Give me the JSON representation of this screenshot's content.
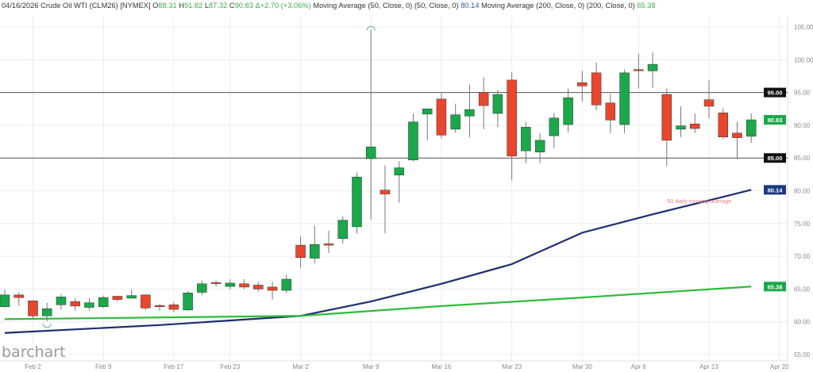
{
  "header": {
    "date": "04/16/2026",
    "symbol": "Crude Oil WTI (CLM26) [NYMEX]",
    "open_label": "O",
    "open": "88.31",
    "high_label": "H",
    "high": "91.82",
    "low_label": "L",
    "low": "87.32",
    "close_label": "C",
    "close": "90.83",
    "change": "Δ+2.70 (+3.06%)",
    "ma50_label": "Moving Average (50, Close, 0)  (50, Close, 0)",
    "ma50_value": "80.14",
    "ma200_label": "Moving Average (200, Close, 0)  (200, Close, 0)",
    "ma200_value": "65.38"
  },
  "logo": "barchart",
  "colors": {
    "up": "#1aa84a",
    "down": "#e8472e",
    "ma50": "#1c2e6e",
    "ma200": "#2dbb3a",
    "badge_black": "#111111",
    "badge_green": "#1aa84a",
    "badge_navy": "#1c3a80",
    "annotation": "#e8838a"
  },
  "chart_data": {
    "type": "candlestick",
    "y_axis": {
      "min": 55,
      "max": 105,
      "ticks": [
        "55.00",
        "60.00",
        "65.00",
        "70.00",
        "75.00",
        "80.00",
        "85.00",
        "90.00",
        "95.00",
        "100.00",
        "105.00"
      ],
      "side": "right"
    },
    "x_ticks": [
      {
        "label": "Feb 2",
        "date": "Feb 2"
      },
      {
        "label": "Feb 9",
        "date": "Feb 9"
      },
      {
        "label": "Feb 17",
        "date": "Feb 17"
      },
      {
        "label": "Feb 23",
        "date": "Feb 23"
      },
      {
        "label": "Mar 2",
        "date": "Mar 2"
      },
      {
        "label": "Mar 9",
        "date": "Mar 9"
      },
      {
        "label": "Mar 16",
        "date": "Mar 16"
      },
      {
        "label": "Mar 23",
        "date": "Mar 23"
      },
      {
        "label": "Mar 30",
        "date": "Mar 30"
      },
      {
        "label": "Apr 6",
        "date": "Apr 6"
      },
      {
        "label": "Apr 13",
        "date": "Apr 13"
      },
      {
        "label": "Apr 20",
        "date": "Apr 20"
      }
    ],
    "grid": true,
    "candles": [
      {
        "d": "Jan 29",
        "o": 62.3,
        "h": 64.9,
        "l": 62.1,
        "c": 64.1
      },
      {
        "d": "Jan 30",
        "o": 64.1,
        "h": 64.5,
        "l": 62.5,
        "c": 63.7
      },
      {
        "d": "Feb 2",
        "o": 63.2,
        "h": 63.3,
        "l": 60.5,
        "c": 60.9
      },
      {
        "d": "Feb 3",
        "o": 60.9,
        "h": 62.9,
        "l": 60.1,
        "c": 62.0
      },
      {
        "d": "Feb 4",
        "o": 62.6,
        "h": 64.2,
        "l": 61.9,
        "c": 63.8
      },
      {
        "d": "Feb 5",
        "o": 63.1,
        "h": 63.6,
        "l": 61.7,
        "c": 62.4
      },
      {
        "d": "Feb 6",
        "o": 62.2,
        "h": 63.6,
        "l": 61.7,
        "c": 62.9
      },
      {
        "d": "Feb 9",
        "o": 62.3,
        "h": 64.0,
        "l": 62.1,
        "c": 63.7
      },
      {
        "d": "Feb 10",
        "o": 63.9,
        "h": 64.0,
        "l": 63.1,
        "c": 63.4
      },
      {
        "d": "Feb 11",
        "o": 63.6,
        "h": 64.9,
        "l": 63.5,
        "c": 64.0
      },
      {
        "d": "Feb 12",
        "o": 64.1,
        "h": 64.2,
        "l": 61.8,
        "c": 62.1
      },
      {
        "d": "Feb 13",
        "o": 62.5,
        "h": 62.7,
        "l": 61.7,
        "c": 62.3
      },
      {
        "d": "Feb 17",
        "o": 62.6,
        "h": 63.0,
        "l": 61.5,
        "c": 61.9
      },
      {
        "d": "Feb 18",
        "o": 61.8,
        "h": 64.7,
        "l": 61.7,
        "c": 64.4
      },
      {
        "d": "Feb 19",
        "o": 64.5,
        "h": 66.3,
        "l": 64.1,
        "c": 65.8
      },
      {
        "d": "Feb 20",
        "o": 66.0,
        "h": 66.3,
        "l": 65.4,
        "c": 65.9
      },
      {
        "d": "Feb 23",
        "o": 65.4,
        "h": 66.5,
        "l": 64.9,
        "c": 65.9
      },
      {
        "d": "Feb 24",
        "o": 65.8,
        "h": 66.5,
        "l": 65.0,
        "c": 65.3
      },
      {
        "d": "Feb 25",
        "o": 65.6,
        "h": 66.1,
        "l": 64.6,
        "c": 65.0
      },
      {
        "d": "Feb 26",
        "o": 65.3,
        "h": 66.1,
        "l": 63.4,
        "c": 64.8
      },
      {
        "d": "Feb 27",
        "o": 64.8,
        "h": 67.2,
        "l": 64.4,
        "c": 66.5
      },
      {
        "d": "Mar 2",
        "o": 71.7,
        "h": 73.0,
        "l": 68.3,
        "c": 69.8
      },
      {
        "d": "Mar 3",
        "o": 69.7,
        "h": 74.7,
        "l": 68.9,
        "c": 71.8
      },
      {
        "d": "Mar 4",
        "o": 71.9,
        "h": 73.9,
        "l": 70.5,
        "c": 71.7
      },
      {
        "d": "Mar 5",
        "o": 72.7,
        "h": 76.1,
        "l": 71.9,
        "c": 75.5
      },
      {
        "d": "Mar 6",
        "o": 74.5,
        "h": 82.8,
        "l": 73.5,
        "c": 82.1
      },
      {
        "d": "Mar 9",
        "o": 84.9,
        "h": 104.6,
        "l": 75.6,
        "c": 86.7
      },
      {
        "d": "Mar 10",
        "o": 80.1,
        "h": 83.9,
        "l": 73.5,
        "c": 79.5
      },
      {
        "d": "Mar 11",
        "o": 82.4,
        "h": 84.5,
        "l": 78.2,
        "c": 83.5
      },
      {
        "d": "Mar 12",
        "o": 84.7,
        "h": 91.8,
        "l": 84.5,
        "c": 90.5
      },
      {
        "d": "Mar 13",
        "o": 91.7,
        "h": 92.6,
        "l": 87.7,
        "c": 92.5
      },
      {
        "d": "Mar 16",
        "o": 94.0,
        "h": 95.0,
        "l": 88.0,
        "c": 88.5
      },
      {
        "d": "Mar 17",
        "o": 89.4,
        "h": 93.3,
        "l": 88.9,
        "c": 91.6
      },
      {
        "d": "Mar 18",
        "o": 91.4,
        "h": 96.2,
        "l": 88.2,
        "c": 92.4
      },
      {
        "d": "Mar 19",
        "o": 95.0,
        "h": 97.3,
        "l": 89.4,
        "c": 93.0
      },
      {
        "d": "Mar 20",
        "o": 91.8,
        "h": 95.4,
        "l": 89.7,
        "c": 94.7
      },
      {
        "d": "Mar 23",
        "o": 96.9,
        "h": 98.1,
        "l": 81.6,
        "c": 85.3
      },
      {
        "d": "Mar 24",
        "o": 86.1,
        "h": 90.5,
        "l": 84.2,
        "c": 89.7
      },
      {
        "d": "Mar 25",
        "o": 85.9,
        "h": 88.8,
        "l": 84.2,
        "c": 87.7
      },
      {
        "d": "Mar 26",
        "o": 88.4,
        "h": 91.9,
        "l": 86.5,
        "c": 91.1
      },
      {
        "d": "Mar 27",
        "o": 90.1,
        "h": 95.6,
        "l": 88.9,
        "c": 94.2
      },
      {
        "d": "Mar 30",
        "o": 96.5,
        "h": 98.3,
        "l": 93.6,
        "c": 96.0
      },
      {
        "d": "Mar 31",
        "o": 98.0,
        "h": 99.6,
        "l": 92.3,
        "c": 93.1
      },
      {
        "d": "Apr 1",
        "o": 93.4,
        "h": 94.8,
        "l": 88.8,
        "c": 90.8
      },
      {
        "d": "Apr 2",
        "o": 90.1,
        "h": 98.5,
        "l": 88.8,
        "c": 98.0
      },
      {
        "d": "Apr 6",
        "o": 98.5,
        "h": 100.9,
        "l": 95.6,
        "c": 98.4
      },
      {
        "d": "Apr 7",
        "o": 98.3,
        "h": 101.1,
        "l": 95.7,
        "c": 99.3
      },
      {
        "d": "Apr 8",
        "o": 94.7,
        "h": 95.6,
        "l": 83.8,
        "c": 87.7
      },
      {
        "d": "Apr 9",
        "o": 89.4,
        "h": 92.9,
        "l": 88.2,
        "c": 89.9
      },
      {
        "d": "Apr 10",
        "o": 90.2,
        "h": 91.8,
        "l": 88.8,
        "c": 89.5
      },
      {
        "d": "Apr 13",
        "o": 93.9,
        "h": 96.9,
        "l": 91.1,
        "c": 92.9
      },
      {
        "d": "Apr 14",
        "o": 91.9,
        "h": 92.6,
        "l": 87.9,
        "c": 88.2
      },
      {
        "d": "Apr 15",
        "o": 88.8,
        "h": 90.5,
        "l": 84.8,
        "c": 88.1
      },
      {
        "d": "Apr 16",
        "o": 88.31,
        "h": 91.82,
        "l": 87.32,
        "c": 90.83
      }
    ],
    "series": [
      {
        "name": "Moving Average (50, Close, 0)",
        "points": [
          [
            "Jan 29",
            58.3
          ],
          [
            "Feb 13",
            59.5
          ],
          [
            "Mar 2",
            60.9
          ],
          [
            "Mar 9",
            63.1
          ],
          [
            "Mar 16",
            65.8
          ],
          [
            "Mar 23",
            68.8
          ],
          [
            "Mar 30",
            73.6
          ],
          [
            "Apr 7",
            76.4
          ],
          [
            "Apr 16",
            80.14
          ]
        ]
      },
      {
        "name": "Moving Average (200, Close, 0)",
        "points": [
          [
            "Jan 29",
            60.4
          ],
          [
            "Mar 2",
            60.9
          ],
          [
            "Mar 16",
            62.4
          ],
          [
            "Mar 30",
            63.7
          ],
          [
            "Apr 16",
            65.38
          ]
        ]
      }
    ],
    "horizontal_lines": [
      95,
      85
    ],
    "price_badges": [
      {
        "text": "95.00",
        "value": 95,
        "color": "badge_black"
      },
      {
        "text": "90.83",
        "value": 90.83,
        "color": "badge_green"
      },
      {
        "text": "85.00",
        "value": 85,
        "color": "badge_black"
      },
      {
        "text": "80.14",
        "value": 80.14,
        "color": "badge_navy"
      },
      {
        "text": "65.38",
        "value": 65.38,
        "color": "badge_green"
      }
    ],
    "annotation": "50 daily moving average"
  }
}
